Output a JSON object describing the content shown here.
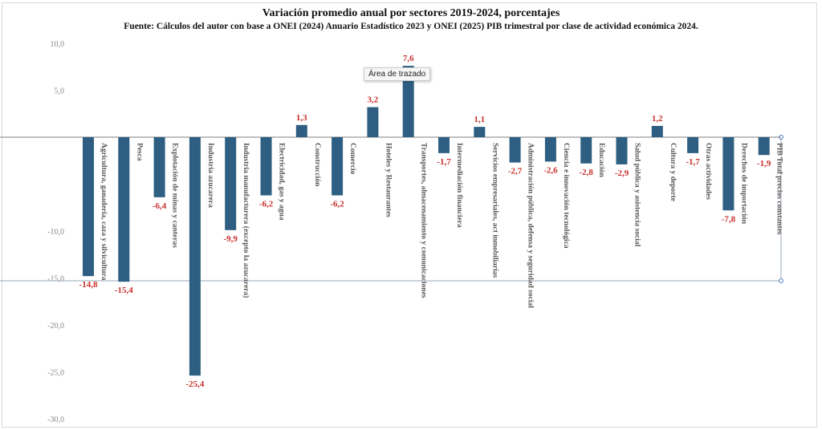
{
  "tooltip": "Área de trazado",
  "colors": {
    "bar": "#2e5f82",
    "data_label": "#c8302c",
    "axis_text": "#888888"
  },
  "chart_data": {
    "type": "bar",
    "title": "Variación promedio anual por sectores 2019-2024, porcentajes",
    "subtitle": "Fuente: Cálculos del autor con base a ONEI (2024) Anuario Estadístico 2023 y ONEI (2025) PIB trimestral por clase de actividad económica 2024.",
    "categories": [
      "Agricultura, ganadería, caza y silvicultura",
      "Pesca",
      "Explotación de minas y canteras",
      "Industria azucarera",
      "Industria manufacturera (excepto la azucarera)",
      "Electricidad, gas y agua",
      "Construcción",
      "Comercio",
      "Hoteles y Restaurantes",
      "Transportes, almacenamiento y comunicaciones",
      "Intermediación financiera",
      "Servicios empresariales, act inmobiliarias",
      "Administración pública, defensa y seguridad social",
      "Ciencia e innovación tecnológica",
      "Educación",
      "Salud pública y asistencia social",
      "Cultura y deporte",
      "Otras actividades",
      "Derechos de importación",
      "PIB Total precios constantes"
    ],
    "values": [
      -14.8,
      -15.4,
      -6.4,
      -25.4,
      -9.9,
      -6.2,
      1.3,
      -6.2,
      3.2,
      7.6,
      -1.7,
      1.1,
      -2.7,
      -2.6,
      -2.8,
      -2.9,
      1.2,
      -1.7,
      -7.8,
      -1.9
    ],
    "data_labels": [
      "-14,8",
      "-15,4",
      "-6,4",
      "-25,4",
      "-9,9",
      "-6,2",
      "1,3",
      "-6,2",
      "3,2",
      "7,6",
      "-1,7",
      "1,1",
      "-2,7",
      "-2,6",
      "-2,8",
      "-2,9",
      "1,2",
      "-1,7",
      "-7,8",
      "-1,9"
    ],
    "ylim": [
      -30,
      10
    ],
    "yticks": [
      10,
      5,
      0,
      -5,
      -10,
      -15,
      -20,
      -25,
      -30
    ],
    "ytick_labels": [
      "10,0",
      "5,0",
      "",
      "",
      "-10,0",
      "-15,0",
      "-20,0",
      "-25,0",
      "-30,0"
    ],
    "grid": false,
    "legend": "none"
  }
}
